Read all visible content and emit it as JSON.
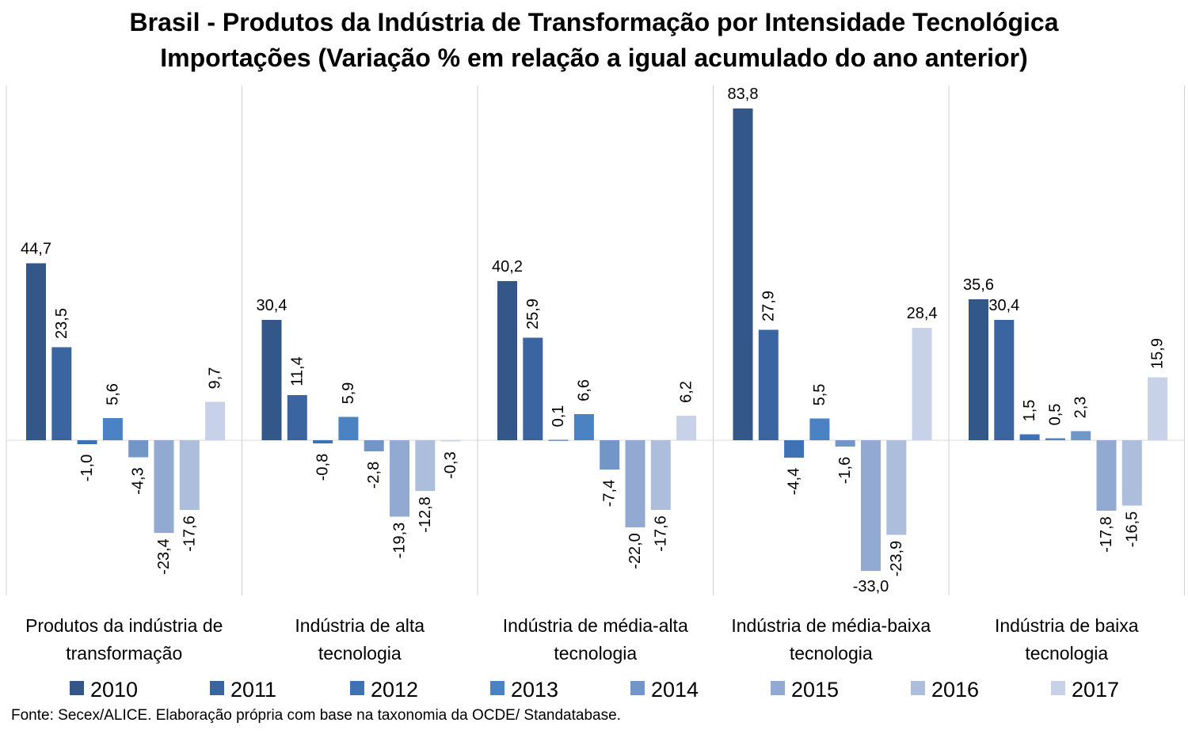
{
  "title_line1": "Brasil - Produtos da Indústria de Transformação por Intensidade Tecnológica",
  "title_line2": "Importações (Variação % em relação a igual acumulado do ano anterior)",
  "source": "Fonte: Secex/ALICE. Elaboração própria com base na taxonomia da OCDE/ Standatabase.",
  "chart_data": {
    "type": "bar",
    "categories": [
      [
        "Produtos da indústria de",
        "transformação"
      ],
      [
        "Indústria de alta",
        "tecnologia"
      ],
      [
        "Indústria de média-alta",
        "tecnologia"
      ],
      [
        "Indústria de média-baixa",
        "tecnologia"
      ],
      [
        "Indústria de baixa",
        "tecnologia"
      ]
    ],
    "series": [
      {
        "name": "2010",
        "color": "#335788",
        "values": [
          44.7,
          30.4,
          40.2,
          83.8,
          35.6
        ]
      },
      {
        "name": "2011",
        "color": "#3a65a0",
        "values": [
          23.5,
          11.4,
          25.9,
          27.9,
          30.4
        ]
      },
      {
        "name": "2012",
        "color": "#3f72b4",
        "values": [
          -1.0,
          -0.8,
          0.1,
          -4.4,
          1.5
        ]
      },
      {
        "name": "2013",
        "color": "#4a82c4",
        "values": [
          5.6,
          5.9,
          6.6,
          5.5,
          0.5
        ]
      },
      {
        "name": "2014",
        "color": "#7396c8",
        "values": [
          -4.3,
          -2.8,
          -7.4,
          -1.6,
          2.3
        ]
      },
      {
        "name": "2015",
        "color": "#92a9d2",
        "values": [
          -23.4,
          -19.3,
          -22.0,
          -33.0,
          -17.8
        ]
      },
      {
        "name": "2016",
        "color": "#adbedd",
        "values": [
          -17.6,
          -12.8,
          -17.6,
          -23.9,
          -16.5
        ]
      },
      {
        "name": "2017",
        "color": "#c7d1e7",
        "values": [
          9.7,
          -0.3,
          6.2,
          28.4,
          15.9
        ]
      }
    ],
    "data_labels": [
      [
        "44,7",
        "30,4",
        "40,2",
        "83,8",
        "35,6"
      ],
      [
        "23,5",
        "11,4",
        "25,9",
        "27,9",
        "30,4"
      ],
      [
        "-1,0",
        "-0,8",
        "0,1",
        "-4,4",
        "1,5"
      ],
      [
        "5,6",
        "5,9",
        "6,6",
        "5,5",
        "0,5"
      ],
      [
        "-4,3",
        "-2,8",
        "-7,4",
        "-1,6",
        "2,3"
      ],
      [
        "-23,4",
        "-19,3",
        "-22,0",
        "-33,0",
        "-17,8"
      ],
      [
        "-17,6",
        "-12,8",
        "-17,6",
        "-23,9",
        "-16,5"
      ],
      [
        "9,7",
        "-0,3",
        "6,2",
        "28,4",
        "15,9"
      ]
    ],
    "ylim": [
      -40,
      90
    ],
    "grid": false,
    "legend": "bottom"
  }
}
